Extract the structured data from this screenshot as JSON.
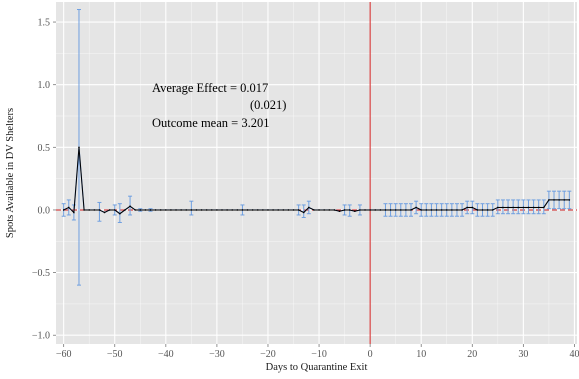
{
  "chart_data": {
    "type": "line",
    "xlabel": "Days to Quarantine Exit",
    "ylabel": "Spots Available in DV Shelters",
    "xlim": [
      -61.5,
      40.5
    ],
    "ylim": [
      -1.07,
      1.66
    ],
    "xticks": [
      -60,
      -50,
      -40,
      -30,
      -20,
      -10,
      0,
      10,
      20,
      30,
      40
    ],
    "xtick_labels": [
      "−60",
      "−50",
      "−40",
      "−30",
      "−20",
      "−10",
      "0",
      "10",
      "20",
      "30",
      "40"
    ],
    "yticks": [
      -1.0,
      -0.5,
      0.0,
      0.5,
      1.0,
      1.5
    ],
    "ytick_labels": [
      "−1.0",
      "−0.5",
      "0.0",
      "0.5",
      "1.0",
      "1.5"
    ],
    "grid": true,
    "vline_x": 0,
    "hline_y": 0,
    "annotations": {
      "line1": "Average Effect = 0.017",
      "line2": "(0.021)",
      "line3": "Outcome mean = 3.201"
    },
    "series": [
      {
        "x": [
          -60,
          -59,
          -58,
          -57,
          -56,
          -55,
          -54,
          -53,
          -52,
          -51,
          -50,
          -49,
          -48,
          -47,
          -46,
          -45,
          -44,
          -43,
          -42,
          -41,
          -40,
          -39,
          -38,
          -37,
          -36,
          -35,
          -34,
          -33,
          -32,
          -31,
          -30,
          -29,
          -28,
          -27,
          -26,
          -25,
          -24,
          -23,
          -22,
          -21,
          -20,
          -19,
          -18,
          -17,
          -16,
          -15,
          -14,
          -13,
          -12,
          -11,
          -10,
          -9,
          -8,
          -7,
          -6,
          -5,
          -4,
          -3,
          -2,
          -1,
          0,
          1,
          2,
          3,
          4,
          5,
          6,
          7,
          8,
          9,
          10,
          11,
          12,
          13,
          14,
          15,
          16,
          17,
          18,
          19,
          20,
          21,
          22,
          23,
          24,
          25,
          26,
          27,
          28,
          29,
          30,
          31,
          32,
          33,
          34,
          35,
          36,
          37,
          38,
          39
        ],
        "values": [
          0,
          0.02,
          -0.02,
          0.5,
          0,
          0,
          0,
          0,
          -0.02,
          0,
          0,
          -0.03,
          0,
          0.03,
          0,
          0,
          0,
          0,
          0,
          0,
          0,
          0,
          0,
          0,
          0,
          0,
          0,
          0,
          0,
          0,
          0,
          0,
          0,
          0,
          0,
          0,
          0,
          0,
          0,
          0,
          0,
          0,
          0,
          0,
          0,
          0,
          0,
          -0.02,
          0.02,
          0,
          0,
          0,
          0,
          0,
          -0.01,
          0,
          0,
          -0.01,
          0,
          0,
          0,
          0,
          0,
          0,
          0,
          0,
          0,
          0,
          0,
          0.02,
          0,
          0,
          0,
          0,
          0,
          0,
          0,
          0,
          0,
          0.02,
          0.02,
          0,
          0,
          0,
          0,
          0.02,
          0.02,
          0.02,
          0.02,
          0.02,
          0.02,
          0.02,
          0.02,
          0.02,
          0.02,
          0.08,
          0.08,
          0.08,
          0.08,
          0.08
        ],
        "ci": [
          {
            "x": -60,
            "lo": -0.05,
            "hi": 0.05
          },
          {
            "x": -59,
            "lo": -0.04,
            "hi": 0.08
          },
          {
            "x": -58,
            "lo": -0.08,
            "hi": 0.04
          },
          {
            "x": -57,
            "lo": -0.6,
            "hi": 1.6
          },
          {
            "x": -53,
            "lo": -0.09,
            "hi": 0.06
          },
          {
            "x": -50,
            "lo": -0.04,
            "hi": 0.04
          },
          {
            "x": -49,
            "lo": -0.1,
            "hi": 0.05
          },
          {
            "x": -47,
            "lo": -0.04,
            "hi": 0.11
          },
          {
            "x": -45,
            "lo": -0.01,
            "hi": 0.01
          },
          {
            "x": -43,
            "lo": -0.01,
            "hi": 0.01
          },
          {
            "x": -35,
            "lo": -0.04,
            "hi": 0.07
          },
          {
            "x": -25,
            "lo": -0.04,
            "hi": 0.04
          },
          {
            "x": -14,
            "lo": -0.04,
            "hi": 0.04
          },
          {
            "x": -13,
            "lo": -0.06,
            "hi": 0.04
          },
          {
            "x": -12,
            "lo": -0.03,
            "hi": 0.07
          },
          {
            "x": -5,
            "lo": -0.04,
            "hi": 0.04
          },
          {
            "x": -4,
            "lo": -0.05,
            "hi": 0.04
          },
          {
            "x": -2,
            "lo": -0.04,
            "hi": 0.04
          },
          {
            "x": 3,
            "lo": -0.05,
            "hi": 0.05
          },
          {
            "x": 4,
            "lo": -0.05,
            "hi": 0.05
          },
          {
            "x": 5,
            "lo": -0.05,
            "hi": 0.05
          },
          {
            "x": 6,
            "lo": -0.05,
            "hi": 0.05
          },
          {
            "x": 7,
            "lo": -0.05,
            "hi": 0.05
          },
          {
            "x": 8,
            "lo": -0.05,
            "hi": 0.05
          },
          {
            "x": 9,
            "lo": -0.03,
            "hi": 0.07
          },
          {
            "x": 10,
            "lo": -0.05,
            "hi": 0.05
          },
          {
            "x": 11,
            "lo": -0.05,
            "hi": 0.05
          },
          {
            "x": 12,
            "lo": -0.05,
            "hi": 0.05
          },
          {
            "x": 13,
            "lo": -0.05,
            "hi": 0.05
          },
          {
            "x": 14,
            "lo": -0.05,
            "hi": 0.05
          },
          {
            "x": 15,
            "lo": -0.05,
            "hi": 0.05
          },
          {
            "x": 16,
            "lo": -0.05,
            "hi": 0.05
          },
          {
            "x": 17,
            "lo": -0.05,
            "hi": 0.05
          },
          {
            "x": 18,
            "lo": -0.05,
            "hi": 0.05
          },
          {
            "x": 19,
            "lo": -0.03,
            "hi": 0.07
          },
          {
            "x": 20,
            "lo": -0.03,
            "hi": 0.07
          },
          {
            "x": 21,
            "lo": -0.05,
            "hi": 0.05
          },
          {
            "x": 22,
            "lo": -0.05,
            "hi": 0.05
          },
          {
            "x": 23,
            "lo": -0.05,
            "hi": 0.05
          },
          {
            "x": 24,
            "lo": -0.05,
            "hi": 0.05
          },
          {
            "x": 25,
            "lo": -0.03,
            "hi": 0.08
          },
          {
            "x": 26,
            "lo": -0.03,
            "hi": 0.08
          },
          {
            "x": 27,
            "lo": -0.03,
            "hi": 0.08
          },
          {
            "x": 28,
            "lo": -0.03,
            "hi": 0.08
          },
          {
            "x": 29,
            "lo": -0.03,
            "hi": 0.08
          },
          {
            "x": 30,
            "lo": -0.03,
            "hi": 0.08
          },
          {
            "x": 31,
            "lo": -0.03,
            "hi": 0.08
          },
          {
            "x": 32,
            "lo": -0.03,
            "hi": 0.08
          },
          {
            "x": 33,
            "lo": -0.03,
            "hi": 0.08
          },
          {
            "x": 34,
            "lo": -0.03,
            "hi": 0.08
          },
          {
            "x": 35,
            "lo": 0.01,
            "hi": 0.15
          },
          {
            "x": 36,
            "lo": 0.01,
            "hi": 0.15
          },
          {
            "x": 37,
            "lo": 0.01,
            "hi": 0.15
          },
          {
            "x": 38,
            "lo": 0.01,
            "hi": 0.15
          },
          {
            "x": 39,
            "lo": 0.01,
            "hi": 0.15
          }
        ]
      }
    ],
    "colors": {
      "panel": "#e5e5e5",
      "grid": "#ffffff",
      "line": "#000000",
      "ci": "#6f9fe0",
      "vline": "#d21f1f",
      "hline": "#d21f1f",
      "trend": "#5a8ad6"
    }
  }
}
